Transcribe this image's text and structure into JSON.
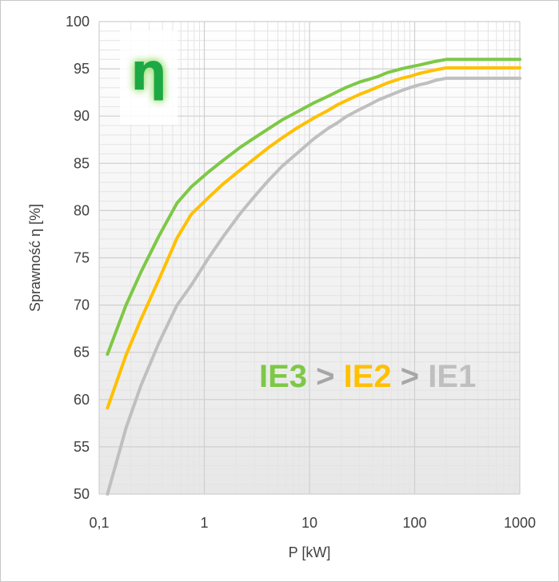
{
  "chart_data": {
    "type": "line",
    "title": "",
    "xlabel": "P [kW]",
    "ylabel": "Sprawność η [%]",
    "x_scale": "log",
    "xlim": [
      0.1,
      1000
    ],
    "ylim": [
      50,
      100
    ],
    "x_ticks": [
      "0,1",
      "1",
      "10",
      "100",
      "1000"
    ],
    "y_ticks": [
      "100",
      "95",
      "90",
      "85",
      "80",
      "75",
      "70",
      "65",
      "60",
      "55",
      "50"
    ],
    "grid": true,
    "series": [
      {
        "name": "IE3",
        "color": "#7dc846",
        "x": [
          0.12,
          0.18,
          0.25,
          0.37,
          0.55,
          0.75,
          1.1,
          1.5,
          2.2,
          3,
          4,
          5.5,
          7.5,
          11,
          15,
          18.5,
          22,
          30,
          37,
          45,
          55,
          75,
          90,
          110,
          132,
          160,
          200,
          1000
        ],
        "y": [
          64.8,
          70.0,
          73.5,
          77.3,
          80.8,
          82.5,
          84.1,
          85.3,
          86.7,
          87.7,
          88.6,
          89.6,
          90.4,
          91.4,
          92.1,
          92.6,
          93.0,
          93.6,
          93.9,
          94.2,
          94.6,
          95.0,
          95.2,
          95.4,
          95.6,
          95.8,
          96.0,
          96.0
        ]
      },
      {
        "name": "IE2",
        "color": "#ffc000",
        "x": [
          0.12,
          0.18,
          0.25,
          0.37,
          0.55,
          0.75,
          1.1,
          1.5,
          2.2,
          3,
          4,
          5.5,
          7.5,
          11,
          15,
          18.5,
          22,
          30,
          37,
          45,
          55,
          75,
          90,
          110,
          132,
          160,
          200,
          1000
        ],
        "y": [
          59.1,
          64.7,
          68.5,
          72.7,
          77.1,
          79.6,
          81.4,
          82.8,
          84.3,
          85.5,
          86.6,
          87.7,
          88.7,
          89.8,
          90.6,
          91.2,
          91.6,
          92.3,
          92.7,
          93.1,
          93.5,
          94.0,
          94.2,
          94.5,
          94.7,
          94.9,
          95.1,
          95.1
        ]
      },
      {
        "name": "IE1",
        "color": "#bfbfbf",
        "x": [
          0.12,
          0.18,
          0.25,
          0.37,
          0.55,
          0.75,
          1.1,
          1.5,
          2.2,
          3,
          4,
          5.5,
          7.5,
          11,
          15,
          18.5,
          22,
          30,
          37,
          45,
          55,
          75,
          90,
          110,
          132,
          160,
          200,
          1000
        ],
        "y": [
          50.0,
          57.0,
          61.5,
          66.0,
          70.0,
          72.1,
          75.0,
          77.2,
          79.7,
          81.5,
          83.1,
          84.7,
          86.0,
          87.6,
          88.7,
          89.3,
          89.9,
          90.7,
          91.2,
          91.7,
          92.1,
          92.7,
          93.0,
          93.3,
          93.5,
          93.8,
          94.0,
          94.0
        ]
      }
    ],
    "legend": {
      "placement": "inside-lower-right",
      "separator": ">",
      "separator_color": "#a6a6a6"
    },
    "symbol": {
      "icon": "eta-letter-icon",
      "text": "η",
      "color": "#1fa845",
      "glow_color": "#9ee27a"
    }
  }
}
